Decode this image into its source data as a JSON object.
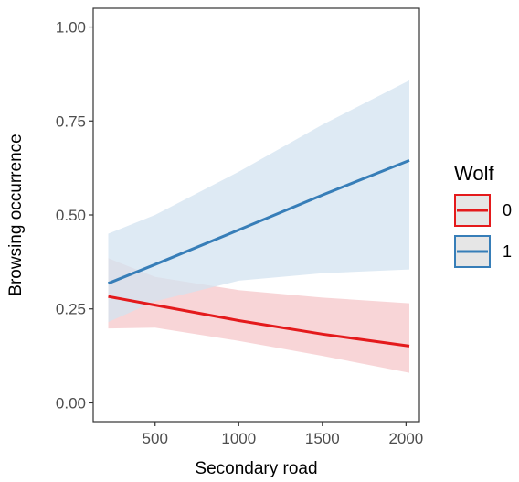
{
  "chart_data": {
    "type": "line",
    "xlabel": "Secondary road",
    "ylabel": "Browsing occurrence",
    "xlim": [
      130,
      2080
    ],
    "ylim": [
      -0.05,
      1.05
    ],
    "x_ticks": [
      500,
      1000,
      1500,
      2000
    ],
    "y_ticks": [
      0.0,
      0.25,
      0.5,
      0.75,
      1.0
    ],
    "x_tick_labels": [
      "500",
      "1000",
      "1500",
      "2000"
    ],
    "y_tick_labels": [
      "0.00",
      "0.25",
      "0.50",
      "0.75",
      "1.00"
    ],
    "x": [
      220,
      500,
      1000,
      1500,
      2020
    ],
    "grid": false,
    "legend": {
      "title": "Wolf",
      "position": "right"
    },
    "series": [
      {
        "name": "0",
        "color": "#e41a1c",
        "ribbon_color": "#f6c7c9",
        "values": [
          0.283,
          0.26,
          0.219,
          0.183,
          0.151
        ],
        "lower": [
          0.198,
          0.2,
          0.165,
          0.125,
          0.08
        ],
        "upper": [
          0.385,
          0.335,
          0.3,
          0.28,
          0.265
        ]
      },
      {
        "name": "1",
        "color": "#377eb8",
        "ribbon_color": "#d3e3f0",
        "values": [
          0.318,
          0.368,
          0.46,
          0.553,
          0.645
        ],
        "lower": [
          0.215,
          0.27,
          0.325,
          0.345,
          0.355
        ],
        "upper": [
          0.45,
          0.5,
          0.615,
          0.74,
          0.858
        ]
      }
    ]
  }
}
